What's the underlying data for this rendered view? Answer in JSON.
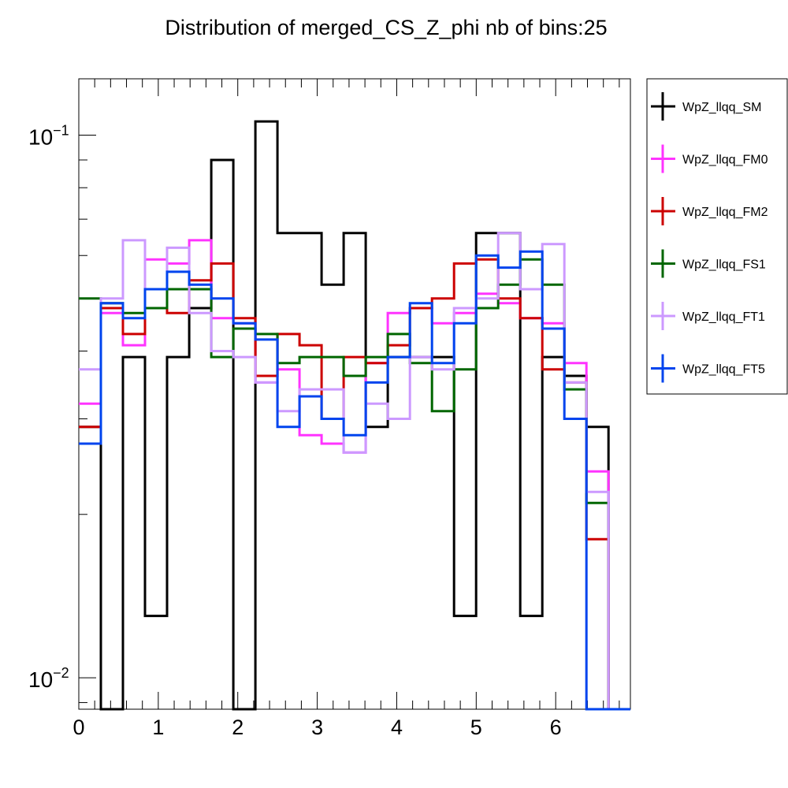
{
  "chart_data": {
    "type": "line",
    "style": "step-histogram",
    "title": "Distribution of merged_CS_Z_phi nb of bins:25",
    "xlabel": "",
    "ylabel": "",
    "xlim": [
      0,
      6.94
    ],
    "ylim": [
      0.00875,
      0.127
    ],
    "yscale": "log",
    "grid": false,
    "legend_position": "right-top",
    "x_ticks": [
      "0",
      "1",
      "2",
      "3",
      "4",
      "5",
      "6"
    ],
    "y_ticks": [
      {
        "base": "10",
        "exp": "−1",
        "value": 0.1
      },
      {
        "base": "10",
        "exp": "−2",
        "value": 0.01
      }
    ],
    "bin_edges": [
      0,
      0.2777,
      0.5554,
      0.8331,
      1.1108,
      1.3885,
      1.6662,
      1.9439,
      2.2216,
      2.4993,
      2.777,
      3.0547,
      3.3324,
      3.6101,
      3.8878,
      4.1655,
      4.4432,
      4.7209,
      4.9986,
      5.2763,
      5.554,
      5.8317,
      6.1094,
      6.3871,
      6.6648,
      6.94
    ],
    "series": [
      {
        "name": "WpZ_llqq_SM",
        "color": "#000000",
        "values": [
          0.029,
          0.008,
          0.039,
          0.013,
          0.039,
          0.048,
          0.09,
          0.008,
          0.106,
          0.066,
          0.066,
          0.053,
          0.066,
          0.029,
          0.039,
          0.039,
          0.039,
          0.013,
          0.066,
          0.066,
          0.013,
          0.039,
          0.036,
          0.029,
          0.008
        ]
      },
      {
        "name": "WpZ_llqq_FM0",
        "color": "#ff33ff",
        "values": [
          0.032,
          0.047,
          0.041,
          0.059,
          0.058,
          0.064,
          0.046,
          0.045,
          0.035,
          0.037,
          0.028,
          0.027,
          0.026,
          0.038,
          0.047,
          0.048,
          0.045,
          0.047,
          0.051,
          0.049,
          0.046,
          0.045,
          0.038,
          0.024,
          0.008
        ]
      },
      {
        "name": "WpZ_llqq_FM2",
        "color": "#cc0000",
        "values": [
          0.029,
          0.048,
          0.043,
          0.048,
          0.047,
          0.054,
          0.058,
          0.046,
          0.036,
          0.043,
          0.041,
          0.03,
          0.039,
          0.038,
          0.041,
          0.048,
          0.05,
          0.058,
          0.059,
          0.05,
          0.046,
          0.037,
          0.035,
          0.018,
          0.008
        ]
      },
      {
        "name": "WpZ_llqq_FS1",
        "color": "#006600",
        "values": [
          0.05,
          0.049,
          0.047,
          0.048,
          0.052,
          0.052,
          0.039,
          0.044,
          0.043,
          0.038,
          0.039,
          0.039,
          0.036,
          0.039,
          0.043,
          0.038,
          0.031,
          0.037,
          0.048,
          0.053,
          0.059,
          0.053,
          0.034,
          0.021,
          0.008
        ]
      },
      {
        "name": "WpZ_llqq_FT1",
        "color": "#cc99ff",
        "values": [
          0.037,
          0.05,
          0.064,
          0.052,
          0.062,
          0.047,
          0.04,
          0.039,
          0.035,
          0.031,
          0.034,
          0.034,
          0.026,
          0.032,
          0.03,
          0.039,
          0.037,
          0.048,
          0.05,
          0.066,
          0.052,
          0.063,
          0.035,
          0.022,
          0.008
        ]
      },
      {
        "name": "WpZ_llqq_FT5",
        "color": "#0044ee",
        "values": [
          0.027,
          0.049,
          0.046,
          0.052,
          0.056,
          0.053,
          0.05,
          0.045,
          0.042,
          0.029,
          0.033,
          0.03,
          0.028,
          0.035,
          0.039,
          0.049,
          0.038,
          0.045,
          0.06,
          0.057,
          0.061,
          0.044,
          0.03,
          0.008,
          0.008
        ]
      }
    ]
  }
}
